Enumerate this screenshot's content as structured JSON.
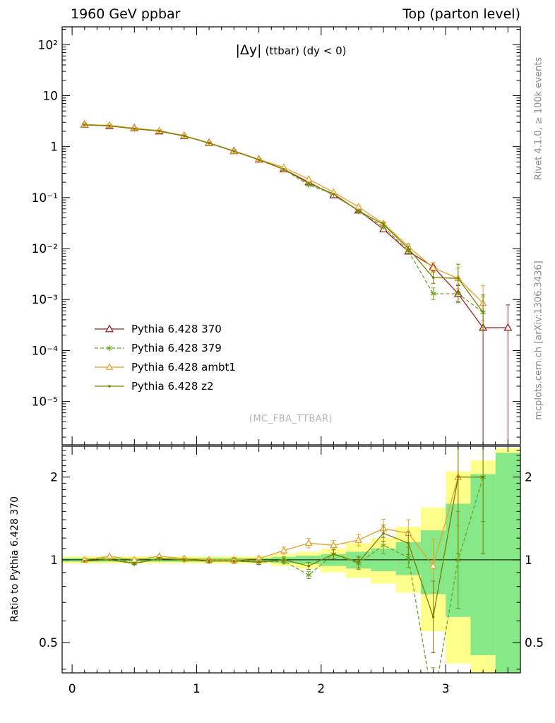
{
  "header": {
    "left": "1960 GeV ppbar",
    "right": "Top (parton level)"
  },
  "side_labels": {
    "rivet": "Rivet 4.1.0, ≥ 100k events",
    "mcplots": "mcplots.cern.ch [arXiv:1306.3436]",
    "ratio_axis": "Ratio to Pythia 6.428 370"
  },
  "watermark": "(MC_FBA_TTBAR)",
  "chart_data": {
    "type": "line",
    "title": "|Δy| (ttbar) (dy < 0)",
    "title_main": "|Δy|",
    "title_note": "(ttbar) (dy < 0)",
    "x": [
      0.1,
      0.3,
      0.5,
      0.7,
      0.9,
      1.1,
      1.3,
      1.5,
      1.7,
      1.9,
      2.1,
      2.3,
      2.5,
      2.7,
      2.9,
      3.1,
      3.3,
      3.5
    ],
    "series": [
      {
        "name": "Pythia 6.428 370",
        "color": "#9f2020",
        "marker": "triangle",
        "dash": null,
        "reference": true,
        "values": [
          2.7,
          2.55,
          2.3,
          2.0,
          1.62,
          1.18,
          0.82,
          0.56,
          0.36,
          0.2,
          0.112,
          0.056,
          0.024,
          0.0088,
          0.0044,
          0.0013,
          0.00028,
          0.00028
        ],
        "err": [
          1.01,
          1.01,
          1.01,
          1.01,
          1.01,
          1.01,
          1.015,
          1.02,
          1.02,
          1.03,
          1.04,
          1.05,
          1.08,
          1.12,
          1.2,
          1.45,
          [
            200,
            2.8
          ],
          [
            200,
            2.8
          ]
        ],
        "ratio": null,
        "ratio_err": null
      },
      {
        "name": "Pythia 6.428 379",
        "color": "#6aa51e",
        "marker": "star",
        "dash": "5,3",
        "reference": false,
        "values": [
          2.7,
          2.6,
          2.23,
          2.02,
          1.62,
          1.17,
          0.82,
          0.55,
          0.356,
          0.176,
          0.118,
          0.054,
          0.027,
          0.009,
          0.0013,
          0.0013,
          0.00056,
          null
        ],
        "err": [
          1.01,
          1.01,
          1.01,
          1.01,
          1.01,
          1.01,
          1.015,
          1.02,
          1.02,
          1.03,
          1.04,
          1.05,
          1.08,
          1.12,
          1.3,
          1.5,
          2.0,
          null
        ],
        "ratio": [
          1.0,
          1.02,
          0.97,
          1.01,
          1.0,
          0.99,
          1.0,
          0.98,
          0.99,
          0.88,
          1.05,
          0.97,
          1.13,
          1.02,
          0.3,
          1.0,
          2.0,
          null
        ],
        "ratio_err": [
          1.008,
          1.008,
          1.01,
          1.01,
          1.012,
          1.015,
          1.02,
          1.02,
          1.025,
          1.03,
          1.04,
          1.05,
          1.07,
          1.09,
          1.35,
          1.5,
          1.45,
          null
        ]
      },
      {
        "name": "Pythia 6.428 ambt1",
        "color": "#e8a128",
        "marker": "triangle",
        "dash": null,
        "reference": false,
        "values": [
          2.7,
          2.62,
          2.3,
          2.06,
          1.64,
          1.18,
          0.82,
          0.565,
          0.39,
          0.23,
          0.127,
          0.066,
          0.031,
          0.011,
          0.0042,
          0.0026,
          0.00085,
          null
        ],
        "err": [
          1.01,
          1.01,
          1.01,
          1.01,
          1.01,
          1.01,
          1.015,
          1.02,
          1.02,
          1.03,
          1.04,
          1.05,
          1.08,
          1.12,
          1.25,
          1.6,
          2.2,
          null
        ],
        "ratio": [
          1.0,
          1.03,
          1.0,
          1.03,
          1.01,
          1.0,
          1.0,
          1.01,
          1.08,
          1.15,
          1.13,
          1.18,
          1.3,
          1.25,
          0.95,
          2.0,
          null,
          null
        ],
        "ratio_err": [
          1.008,
          1.008,
          1.01,
          1.01,
          1.012,
          1.015,
          1.02,
          1.02,
          1.03,
          1.04,
          1.04,
          1.05,
          1.08,
          1.12,
          1.25,
          1.5,
          null,
          null
        ]
      },
      {
        "name": "Pythia 6.428 z2",
        "color": "#7d7d00",
        "marker": "dot",
        "dash": null,
        "reference": false,
        "values": [
          2.67,
          2.55,
          2.23,
          2.02,
          1.62,
          1.17,
          0.81,
          0.55,
          0.36,
          0.19,
          0.118,
          0.055,
          0.03,
          0.01,
          0.0027,
          0.0026,
          0.00056,
          null
        ],
        "err": [
          1.01,
          1.01,
          1.01,
          1.01,
          1.01,
          1.01,
          1.015,
          1.02,
          1.02,
          1.03,
          1.04,
          1.05,
          1.08,
          1.12,
          1.3,
          1.9,
          2.2,
          null
        ],
        "ratio": [
          0.99,
          1.0,
          0.97,
          1.01,
          1.0,
          0.99,
          0.99,
          0.98,
          1.0,
          0.95,
          1.05,
          0.98,
          1.25,
          1.15,
          0.62,
          2.0,
          2.0,
          null
        ],
        "ratio_err": [
          1.008,
          1.008,
          1.01,
          1.01,
          1.012,
          1.015,
          1.02,
          1.02,
          1.025,
          1.03,
          1.04,
          1.05,
          1.07,
          1.1,
          1.35,
          1.9,
          1.9,
          null
        ]
      }
    ],
    "x_axis": {
      "range": [
        -0.08,
        3.6
      ],
      "ticks": [
        0,
        1,
        2,
        3
      ],
      "tick_labels": [
        "0",
        "1",
        "2",
        "3"
      ]
    },
    "main_axis": {
      "scale": "log",
      "range_log": [
        -5.85,
        2.35
      ],
      "ticks": [
        {
          "v": 100,
          "label": "10²"
        },
        {
          "v": 10,
          "label": "10"
        },
        {
          "v": 1,
          "label": "1"
        },
        {
          "v": 0.1,
          "label": "10⁻¹"
        },
        {
          "v": 0.01,
          "label": "10⁻²"
        },
        {
          "v": 0.001,
          "label": "10⁻³"
        },
        {
          "v": 0.0001,
          "label": "10⁻⁴"
        },
        {
          "v": 1e-05,
          "label": "10⁻⁵"
        }
      ]
    },
    "ratio_axis": {
      "scale": "log",
      "label": "Ratio to Pythia 6.428 370",
      "range_log": [
        -0.4111,
        0.4133
      ],
      "ticks": [
        {
          "v": 2,
          "label": "2"
        },
        {
          "v": 1,
          "label": "1"
        },
        {
          "v": 0.5,
          "label": "0.5"
        }
      ]
    },
    "bands": {
      "colors": {
        "yellow": "#ffff8c",
        "green": "#86e886"
      },
      "yellow": [
        {
          "x0": -0.08,
          "x1": 1.6,
          "lo": 0.97,
          "hi": 1.03
        },
        {
          "x0": 1.6,
          "x1": 1.8,
          "lo": 0.95,
          "hi": 1.05
        },
        {
          "x0": 1.8,
          "x1": 2.0,
          "lo": 0.93,
          "hi": 1.07
        },
        {
          "x0": 2.0,
          "x1": 2.2,
          "lo": 0.9,
          "hi": 1.1
        },
        {
          "x0": 2.2,
          "x1": 2.4,
          "lo": 0.86,
          "hi": 1.15
        },
        {
          "x0": 2.4,
          "x1": 2.6,
          "lo": 0.82,
          "hi": 1.2
        },
        {
          "x0": 2.6,
          "x1": 2.8,
          "lo": 0.76,
          "hi": 1.32
        },
        {
          "x0": 2.8,
          "x1": 3.0,
          "lo": 0.55,
          "hi": 1.55
        },
        {
          "x0": 3.0,
          "x1": 3.2,
          "lo": 0.42,
          "hi": 2.1
        },
        {
          "x0": 3.2,
          "x1": 3.4,
          "lo": 0.38,
          "hi": 2.3
        },
        {
          "x0": 3.4,
          "x1": 3.6,
          "lo": 0.36,
          "hi": 2.55
        }
      ],
      "green": [
        {
          "x0": -0.08,
          "x1": 1.6,
          "lo": 0.985,
          "hi": 1.015
        },
        {
          "x0": 1.6,
          "x1": 1.8,
          "lo": 0.975,
          "hi": 1.025
        },
        {
          "x0": 1.8,
          "x1": 2.0,
          "lo": 0.965,
          "hi": 1.035
        },
        {
          "x0": 2.0,
          "x1": 2.2,
          "lo": 0.95,
          "hi": 1.05
        },
        {
          "x0": 2.2,
          "x1": 2.4,
          "lo": 0.93,
          "hi": 1.07
        },
        {
          "x0": 2.4,
          "x1": 2.6,
          "lo": 0.91,
          "hi": 1.1
        },
        {
          "x0": 2.6,
          "x1": 2.8,
          "lo": 0.88,
          "hi": 1.16
        },
        {
          "x0": 2.8,
          "x1": 3.0,
          "lo": 0.75,
          "hi": 1.28
        },
        {
          "x0": 3.0,
          "x1": 3.2,
          "lo": 0.62,
          "hi": 1.6
        },
        {
          "x0": 3.2,
          "x1": 3.4,
          "lo": 0.45,
          "hi": 2.05
        },
        {
          "x0": 3.4,
          "x1": 3.6,
          "lo": 0.36,
          "hi": 2.45
        }
      ]
    }
  }
}
